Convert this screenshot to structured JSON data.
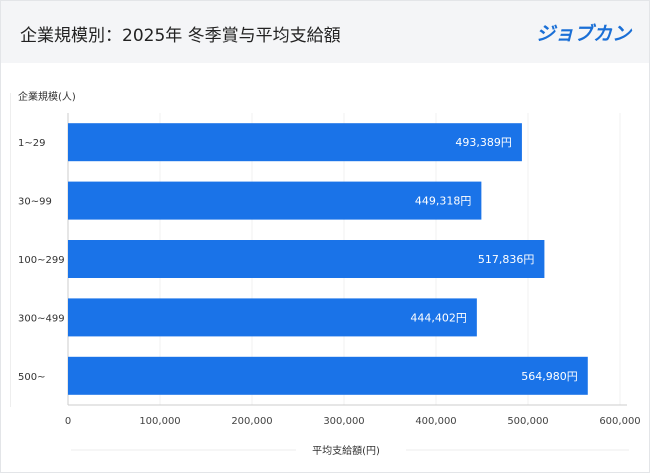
{
  "header": {
    "title": "企業規模別：2025年 冬季賞与平均支給額",
    "logo": "ジョブカン"
  },
  "chart_data": {
    "type": "bar",
    "orientation": "horizontal",
    "categories": [
      "1~29",
      "30~99",
      "100~299",
      "300~499",
      "500~"
    ],
    "values": [
      493389,
      449318,
      517836,
      444402,
      564980
    ],
    "data_labels": [
      "493,389円",
      "449,318円",
      "517,836円",
      "444,402円",
      "564,980円"
    ],
    "title": "企業規模別：2025年 冬季賞与平均支給額",
    "xlabel": "平均支給額(円)",
    "ylabel": "企業規模(人)",
    "xlim": [
      0,
      600000
    ],
    "xticks": [
      "0",
      "100,000",
      "200,000",
      "300,000",
      "400,000",
      "500,000",
      "600,000"
    ],
    "grid": true,
    "bar_color": "#1a73e8"
  }
}
